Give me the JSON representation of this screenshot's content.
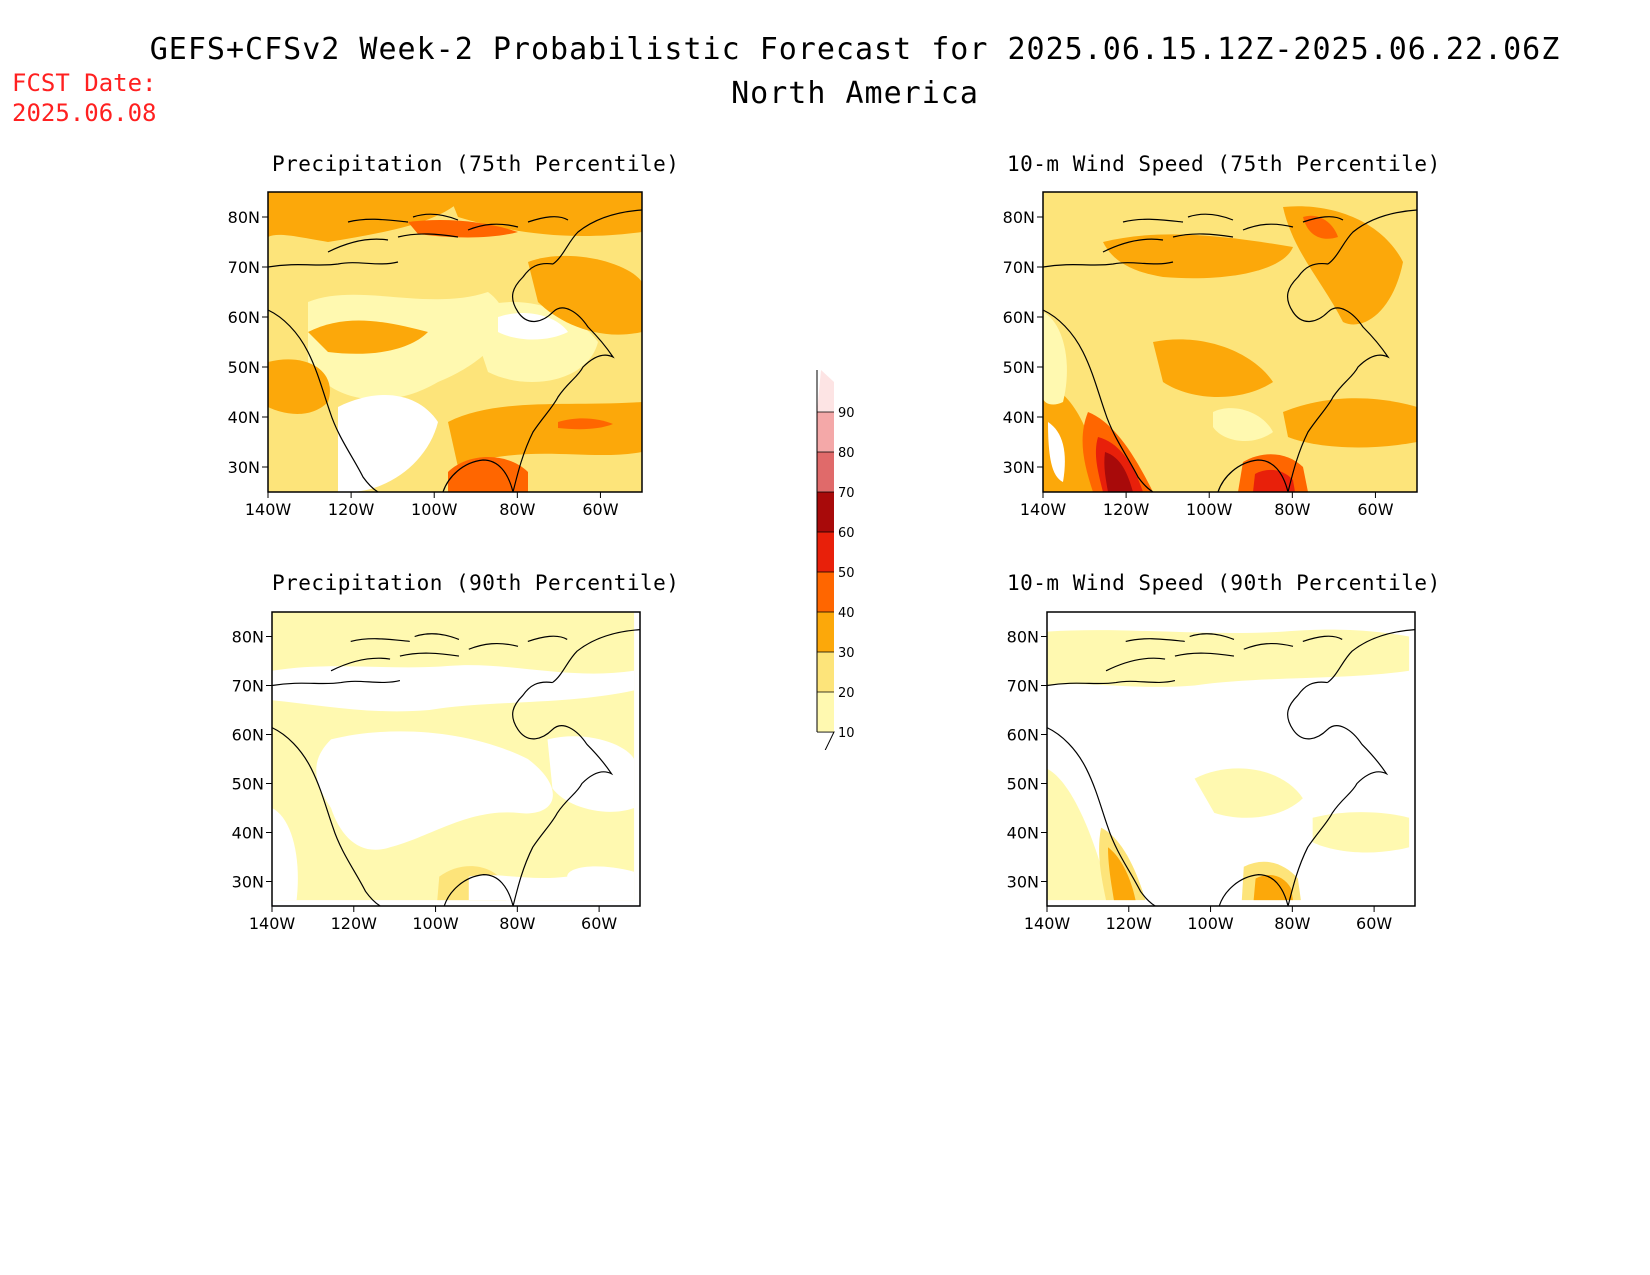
{
  "header": {
    "title": "GEFS+CFSv2 Week-2 Probabilistic Forecast for 2025.06.15.12Z-2025.06.22.06Z",
    "subtitle": "North America",
    "fcst_date_label": "FCST Date:",
    "fcst_date_value": "2025.06.08"
  },
  "panels": [
    {
      "title": "Precipitation (75th Percentile)",
      "variable": "precipitation",
      "percentile": 75
    },
    {
      "title": "10-m Wind Speed (75th Percentile)",
      "variable": "wind",
      "percentile": 75
    },
    {
      "title": "Precipitation (90th Percentile)",
      "variable": "precipitation",
      "percentile": 90
    },
    {
      "title": "10-m Wind Speed (90th Percentile)",
      "variable": "wind",
      "percentile": 90
    }
  ],
  "axes": {
    "lat_labels": [
      "80N",
      "70N",
      "60N",
      "50N",
      "40N",
      "30N"
    ],
    "lat_values": [
      80,
      70,
      60,
      50,
      40,
      30
    ],
    "lon_labels": [
      "140W",
      "120W",
      "100W",
      "80W",
      "60W"
    ],
    "lon_values": [
      -140,
      -120,
      -100,
      -80,
      -60
    ],
    "lat_range": [
      25,
      85
    ],
    "lon_range": [
      -140,
      -50
    ]
  },
  "colorbar": {
    "levels": [
      "10",
      "20",
      "30",
      "40",
      "50",
      "60",
      "70",
      "80",
      "90"
    ],
    "colors": [
      "#fff9b0",
      "#fde47a",
      "#fca80a",
      "#ff6600",
      "#e8200a",
      "#a80a0a",
      "#e06a6a",
      "#f4a8a8",
      "#fde4e4"
    ]
  }
}
